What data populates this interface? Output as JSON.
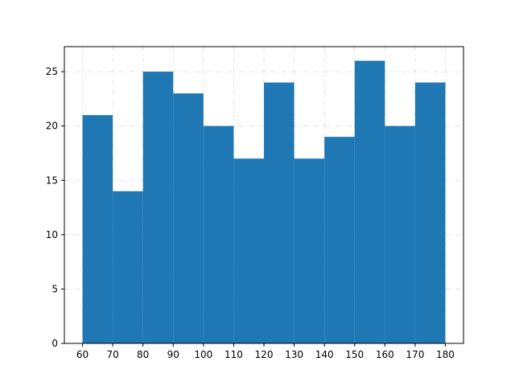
{
  "chart_data": {
    "type": "bar",
    "subtype": "histogram",
    "title": "",
    "xlabel": "",
    "ylabel": "",
    "bin_edges": [
      60,
      70,
      80,
      90,
      100,
      110,
      120,
      130,
      140,
      150,
      160,
      170,
      180
    ],
    "counts": [
      21,
      14,
      25,
      23,
      20,
      17,
      24,
      17,
      19,
      26,
      20,
      24
    ],
    "xlim": [
      54,
      186
    ],
    "ylim": [
      0,
      27.3
    ],
    "x_ticks": [
      "60",
      "70",
      "80",
      "90",
      "100",
      "110",
      "120",
      "130",
      "140",
      "150",
      "160",
      "170",
      "180"
    ],
    "y_ticks": [
      "0",
      "5",
      "10",
      "15",
      "20",
      "25"
    ],
    "grid": true,
    "grid_style": "dashdot",
    "bar_color": "#1f77b4",
    "grid_color": "#dddddd"
  }
}
